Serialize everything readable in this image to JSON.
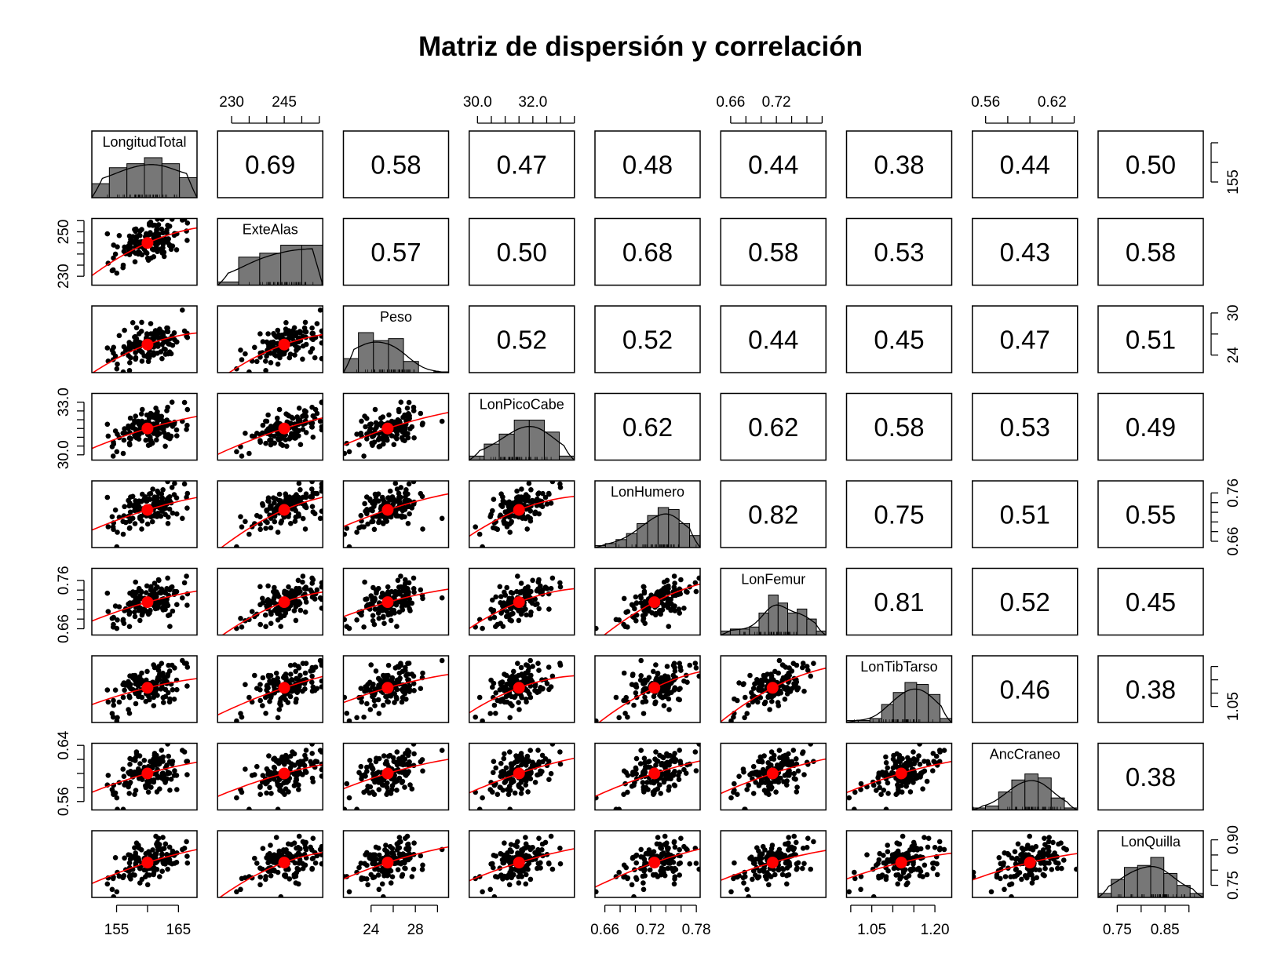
{
  "chart_data": {
    "type": "scatter",
    "subtype": "pairs-matrix",
    "title": "Matriz de dispersión y correlación",
    "variables": [
      {
        "name": "LongitudTotal",
        "range": [
          151,
          168
        ]
      },
      {
        "name": "ExteAlas",
        "range": [
          226,
          256
        ]
      },
      {
        "name": "Peso",
        "range": [
          21.5,
          31
        ]
      },
      {
        "name": "LonPicoCabe",
        "range": [
          29.7,
          33.5
        ]
      },
      {
        "name": "LonHumero",
        "range": [
          0.647,
          0.785
        ]
      },
      {
        "name": "LonFemur",
        "range": [
          0.647,
          0.785
        ]
      },
      {
        "name": "LonTibTarso",
        "range": [
          0.99,
          1.24
        ]
      },
      {
        "name": "AncCraneo",
        "range": [
          0.548,
          0.643
        ]
      },
      {
        "name": "LonQuilla",
        "range": [
          0.71,
          0.93
        ]
      }
    ],
    "means": [
      160,
      245,
      25.5,
      31.5,
      0.725,
      0.715,
      1.12,
      0.6,
      0.825
    ],
    "correlations": [
      [
        "",
        "0.69",
        "0.58",
        "0.47",
        "0.48",
        "0.44",
        "0.38",
        "0.44",
        "0.50"
      ],
      [
        "",
        "",
        "0.57",
        "0.50",
        "0.68",
        "0.58",
        "0.53",
        "0.43",
        "0.58"
      ],
      [
        "",
        "",
        "",
        "0.52",
        "0.52",
        "0.44",
        "0.45",
        "0.47",
        "0.51"
      ],
      [
        "",
        "",
        "",
        "",
        "0.62",
        "0.62",
        "0.58",
        "0.53",
        "0.49"
      ],
      [
        "",
        "",
        "",
        "",
        "",
        "0.82",
        "0.75",
        "0.51",
        "0.55"
      ],
      [
        "",
        "",
        "",
        "",
        "",
        "",
        "0.81",
        "0.52",
        "0.45"
      ],
      [
        "",
        "",
        "",
        "",
        "",
        "",
        "",
        "0.46",
        "0.38"
      ],
      [
        "",
        "",
        "",
        "",
        "",
        "",
        "",
        "",
        "0.38"
      ]
    ],
    "histograms": [
      [
        0.35,
        0.75,
        0.85,
        1.0,
        0.85,
        0.5
      ],
      [
        0.08,
        0.7,
        0.8,
        1.0,
        1.0
      ],
      [
        0.35,
        1.0,
        0.8,
        0.85,
        0.28,
        0.0,
        0.02
      ],
      [
        0.1,
        0.4,
        0.65,
        1.0,
        1.0,
        0.7,
        0.1
      ],
      [
        0.05,
        0.1,
        0.2,
        0.35,
        0.6,
        0.8,
        1.0,
        0.95,
        0.6,
        0.3
      ],
      [
        0.1,
        0.15,
        0.15,
        0.2,
        0.55,
        1.0,
        0.8,
        0.55,
        0.65,
        0.4,
        0.1
      ],
      [
        0.05,
        0.05,
        0.1,
        0.45,
        0.75,
        1.0,
        0.95,
        0.7,
        0.1
      ],
      [
        0.05,
        0.1,
        0.45,
        0.75,
        0.9,
        0.8,
        0.3,
        0.05
      ],
      [
        0.1,
        0.45,
        0.75,
        0.8,
        1.0,
        0.6,
        0.3,
        0.1
      ]
    ],
    "axes": {
      "top": [
        {
          "col": 1,
          "ticks": [
            230,
            235,
            240,
            245,
            250,
            255
          ],
          "labels": [
            [
              "230",
              230
            ],
            [
              "245",
              245
            ]
          ]
        },
        {
          "col": 3,
          "ticks": [
            30.0,
            30.5,
            31.0,
            31.5,
            32.0,
            32.5,
            33.0,
            33.5
          ],
          "labels": [
            [
              "30.0",
              30.0
            ],
            [
              "32.0",
              32.0
            ]
          ]
        },
        {
          "col": 5,
          "ticks": [
            0.66,
            0.68,
            0.7,
            0.72,
            0.74,
            0.76,
            0.78
          ],
          "labels": [
            [
              "0.66",
              0.66
            ],
            [
              "0.72",
              0.72
            ]
          ]
        },
        {
          "col": 7,
          "ticks": [
            0.56,
            0.58,
            0.6,
            0.62,
            0.64
          ],
          "labels": [
            [
              "0.56",
              0.56
            ],
            [
              "0.62",
              0.62
            ]
          ]
        }
      ],
      "bottom": [
        {
          "col": 0,
          "ticks": [
            155,
            160,
            165
          ],
          "labels": [
            [
              "155",
              155
            ],
            [
              "165",
              165
            ]
          ]
        },
        {
          "col": 2,
          "ticks": [
            24,
            26,
            28,
            30
          ],
          "labels": [
            [
              "24",
              24
            ],
            [
              "28",
              28
            ]
          ]
        },
        {
          "col": 4,
          "ticks": [
            0.66,
            0.68,
            0.7,
            0.72,
            0.74,
            0.76,
            0.78
          ],
          "labels": [
            [
              "0.66",
              0.66
            ],
            [
              "0.72",
              0.72
            ],
            [
              "0.78",
              0.78
            ]
          ]
        },
        {
          "col": 6,
          "ticks": [
            1.0,
            1.05,
            1.1,
            1.15,
            1.2
          ],
          "labels": [
            [
              "1.05",
              1.05
            ],
            [
              "1.20",
              1.2
            ]
          ]
        },
        {
          "col": 8,
          "ticks": [
            0.75,
            0.8,
            0.85,
            0.9
          ],
          "labels": [
            [
              "0.75",
              0.75
            ],
            [
              "0.85",
              0.85
            ]
          ]
        }
      ],
      "left": [
        {
          "row": 1,
          "ticks": [
            230,
            235,
            240,
            245,
            250,
            255
          ],
          "labels": [
            [
              "230",
              230
            ],
            [
              "250",
              250
            ]
          ]
        },
        {
          "row": 3,
          "ticks": [
            30.0,
            30.5,
            31.0,
            31.5,
            32.0,
            32.5,
            33.0
          ],
          "labels": [
            [
              "30.0",
              30.0
            ],
            [
              "33.0",
              33.0
            ]
          ]
        },
        {
          "row": 5,
          "ticks": [
            0.66,
            0.68,
            0.7,
            0.72,
            0.74,
            0.76
          ],
          "labels": [
            [
              "0.66",
              0.66
            ],
            [
              "0.76",
              0.76
            ]
          ]
        },
        {
          "row": 7,
          "ticks": [
            0.56,
            0.58,
            0.6,
            0.62,
            0.64
          ],
          "labels": [
            [
              "0.56",
              0.56
            ],
            [
              "0.64",
              0.64
            ]
          ]
        }
      ],
      "right": [
        {
          "row": 0,
          "ticks": [
            155,
            160,
            165
          ],
          "labels": [
            [
              "155",
              155
            ]
          ]
        },
        {
          "row": 2,
          "ticks": [
            24,
            27,
            30
          ],
          "labels": [
            [
              "24",
              24
            ],
            [
              "30",
              30
            ]
          ]
        },
        {
          "row": 4,
          "ticks": [
            0.66,
            0.68,
            0.7,
            0.72,
            0.74,
            0.76
          ],
          "labels": [
            [
              "0.66",
              0.66
            ],
            [
              "0.76",
              0.76
            ]
          ]
        },
        {
          "row": 6,
          "ticks": [
            1.05,
            1.1,
            1.15,
            1.2
          ],
          "labels": [
            [
              "1.05",
              1.05
            ]
          ]
        },
        {
          "row": 8,
          "ticks": [
            0.75,
            0.8,
            0.85,
            0.9
          ],
          "labels": [
            [
              "0.75",
              0.75
            ],
            [
              "0.90",
              0.9
            ]
          ]
        }
      ]
    },
    "colors": {
      "points": "#000000",
      "smooth_line": "#ff0000",
      "mean_point": "#ff0000",
      "histogram_fill": "#777777",
      "density_line": "#000000"
    }
  }
}
